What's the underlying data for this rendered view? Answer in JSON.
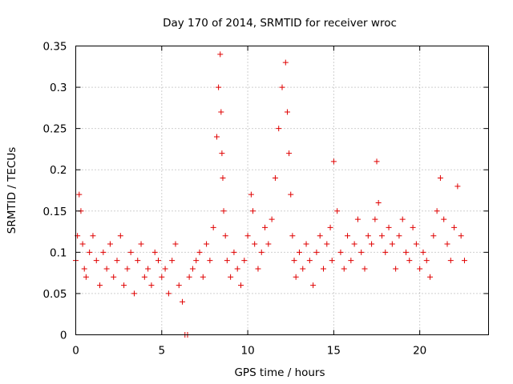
{
  "chart_data": {
    "type": "scatter",
    "title": "Day 170 of 2014, SRMTID for receiver wroc",
    "xlabel": "GPS time / hours",
    "ylabel": "SRMTID / TECUs",
    "xlim": [
      0,
      24
    ],
    "ylim": [
      0,
      0.35
    ],
    "x_ticks": [
      0,
      5,
      10,
      15,
      20
    ],
    "x_tick_labels": [
      "0",
      "5",
      "10",
      "15",
      "20"
    ],
    "y_ticks": [
      0,
      0.05,
      0.1,
      0.15,
      0.2,
      0.25,
      0.3,
      0.35
    ],
    "y_tick_labels": [
      "0",
      "0.05",
      "0.1",
      "0.15",
      "0.2",
      "0.25",
      "0.3",
      "0.35"
    ],
    "grid": true,
    "marker": "plus",
    "color": "#e00000",
    "series": [
      {
        "name": "SRMTID",
        "x": [
          0.0,
          0.1,
          0.2,
          0.3,
          0.4,
          0.5,
          0.6,
          0.8,
          1.0,
          1.2,
          1.4,
          1.6,
          1.8,
          2.0,
          2.2,
          2.4,
          2.6,
          2.8,
          3.0,
          3.2,
          3.4,
          3.6,
          3.8,
          4.0,
          4.2,
          4.4,
          4.6,
          4.8,
          5.0,
          5.2,
          5.4,
          5.6,
          5.8,
          6.0,
          6.2,
          6.35,
          6.5,
          6.6,
          6.8,
          7.0,
          7.2,
          7.4,
          7.6,
          7.8,
          8.0,
          8.2,
          8.3,
          8.4,
          8.45,
          8.5,
          8.55,
          8.6,
          8.7,
          8.8,
          9.0,
          9.2,
          9.4,
          9.6,
          9.8,
          10.0,
          10.2,
          10.3,
          10.4,
          10.6,
          10.8,
          11.0,
          11.2,
          11.4,
          11.6,
          11.8,
          12.0,
          12.2,
          12.3,
          12.4,
          12.5,
          12.6,
          12.7,
          12.8,
          13.0,
          13.2,
          13.4,
          13.6,
          13.8,
          14.0,
          14.2,
          14.4,
          14.6,
          14.8,
          14.9,
          15.0,
          15.2,
          15.4,
          15.6,
          15.8,
          16.0,
          16.2,
          16.4,
          16.6,
          16.8,
          17.0,
          17.2,
          17.4,
          17.5,
          17.6,
          17.8,
          18.0,
          18.2,
          18.4,
          18.6,
          18.8,
          19.0,
          19.2,
          19.4,
          19.6,
          19.8,
          20.0,
          20.2,
          20.4,
          20.6,
          20.8,
          21.0,
          21.2,
          21.4,
          21.6,
          21.8,
          22.0,
          22.2,
          22.4,
          22.6
        ],
        "y": [
          0.09,
          0.12,
          0.17,
          0.15,
          0.11,
          0.08,
          0.07,
          0.1,
          0.12,
          0.09,
          0.06,
          0.1,
          0.08,
          0.11,
          0.07,
          0.09,
          0.12,
          0.06,
          0.08,
          0.1,
          0.05,
          0.09,
          0.11,
          0.07,
          0.08,
          0.06,
          0.1,
          0.09,
          0.07,
          0.08,
          0.05,
          0.09,
          0.11,
          0.06,
          0.04,
          0.0,
          0.0,
          0.07,
          0.08,
          0.09,
          0.1,
          0.07,
          0.11,
          0.09,
          0.13,
          0.24,
          0.3,
          0.34,
          0.27,
          0.22,
          0.19,
          0.15,
          0.12,
          0.09,
          0.07,
          0.1,
          0.08,
          0.06,
          0.09,
          0.12,
          0.17,
          0.15,
          0.11,
          0.08,
          0.1,
          0.13,
          0.11,
          0.14,
          0.19,
          0.25,
          0.3,
          0.33,
          0.27,
          0.22,
          0.17,
          0.12,
          0.09,
          0.07,
          0.1,
          0.08,
          0.11,
          0.09,
          0.06,
          0.1,
          0.12,
          0.08,
          0.11,
          0.13,
          0.09,
          0.21,
          0.15,
          0.1,
          0.08,
          0.12,
          0.09,
          0.11,
          0.14,
          0.1,
          0.08,
          0.12,
          0.11,
          0.14,
          0.21,
          0.16,
          0.12,
          0.1,
          0.13,
          0.11,
          0.08,
          0.12,
          0.14,
          0.1,
          0.09,
          0.13,
          0.11,
          0.08,
          0.1,
          0.09,
          0.07,
          0.12,
          0.15,
          0.19,
          0.14,
          0.11,
          0.09,
          0.13,
          0.18,
          0.12,
          0.09
        ]
      }
    ]
  }
}
